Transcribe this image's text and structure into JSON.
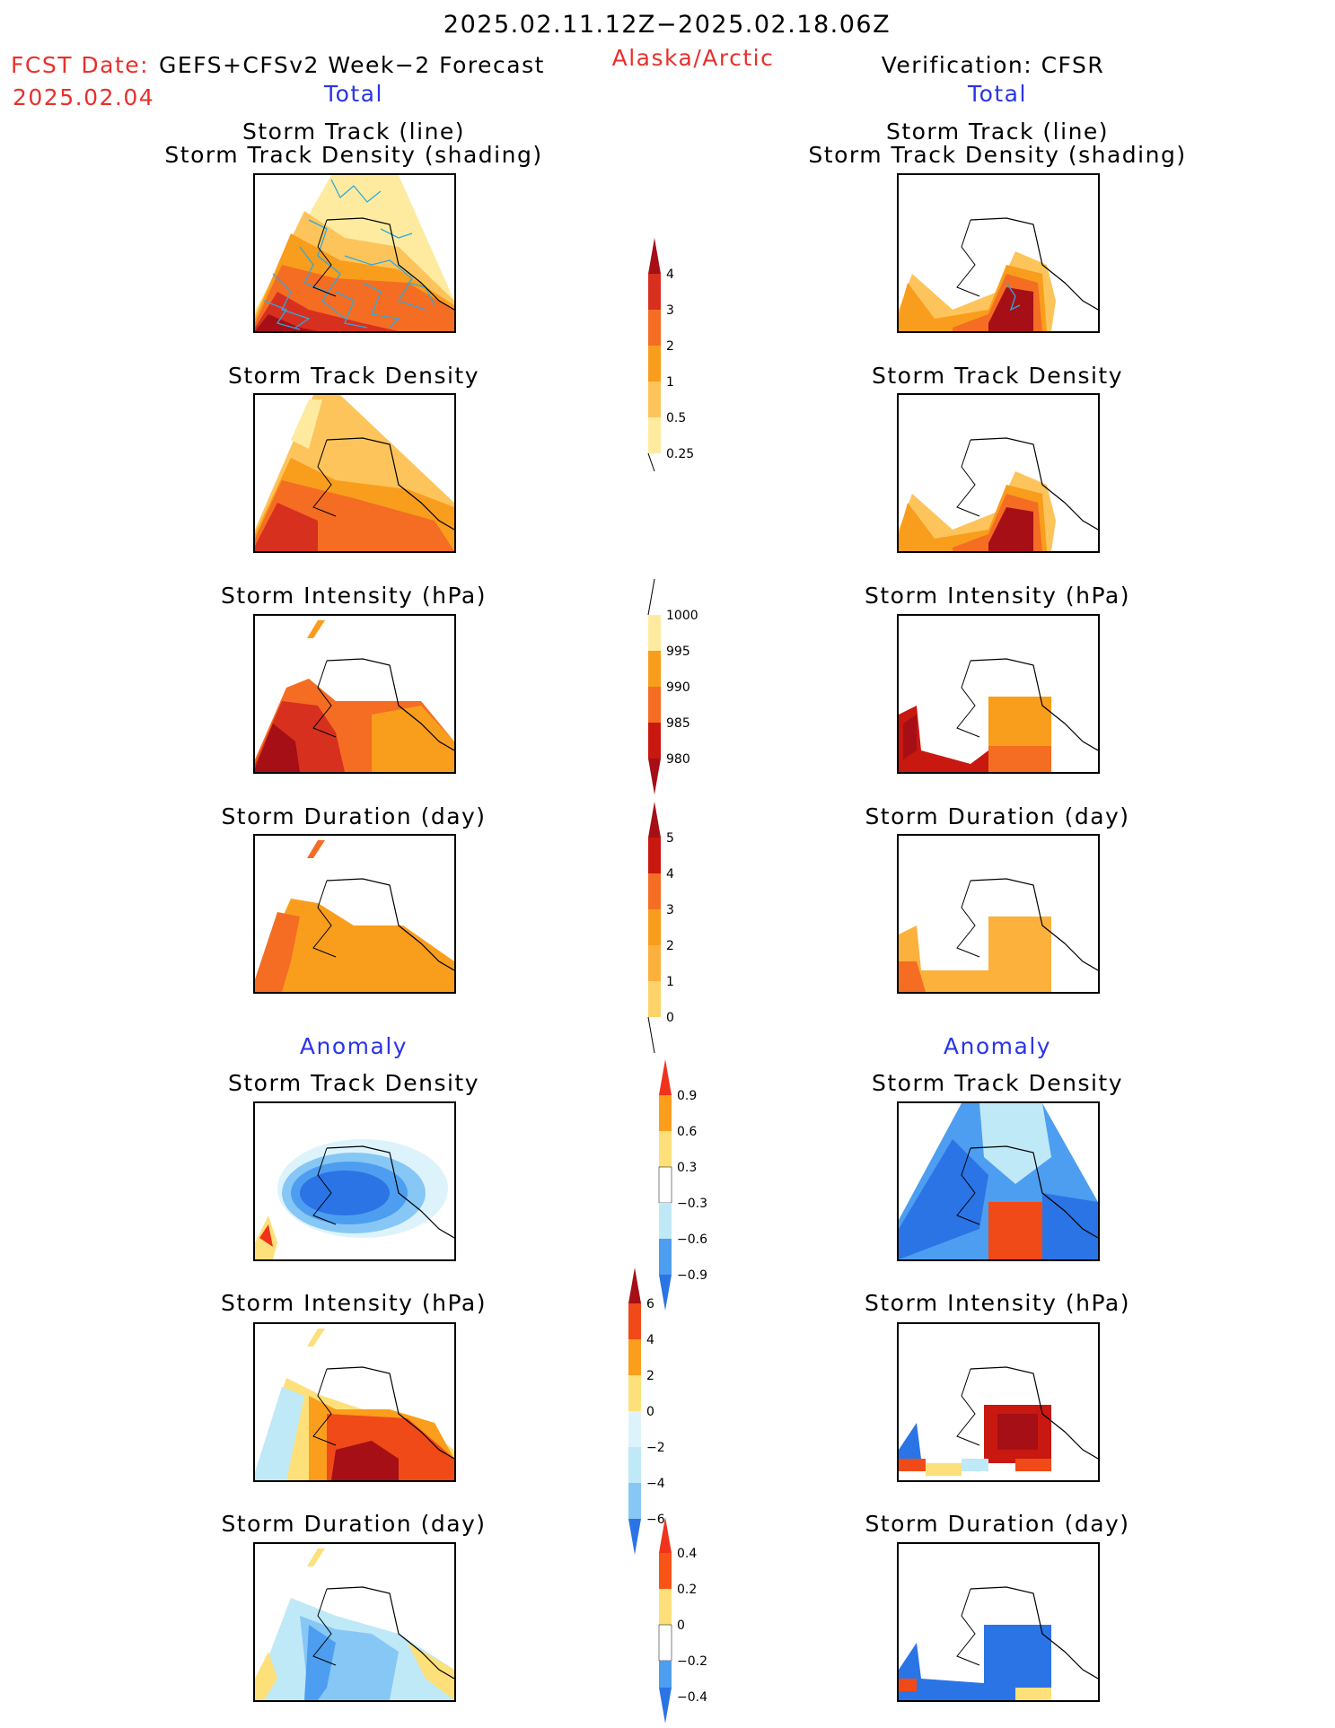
{
  "header": {
    "period": "2025.02.11.12Z−2025.02.18.06Z",
    "fcst_label": "FCST Date:",
    "fcst_product": "GEFS+CFSv2 Week−2 Forecast",
    "fcst_date": "2025.02.04",
    "region": "Alaska/Arctic",
    "verification": "Verification: CFSR"
  },
  "sections": {
    "total": "Total",
    "anomaly": "Anomaly"
  },
  "titles": {
    "track_line": "Storm Track (line)",
    "track_density_shading": "Storm Track Density (shading)",
    "track_density": "Storm Track Density",
    "intensity": "Storm Intensity (hPa)",
    "duration": "Storm Duration (day)"
  },
  "colorbars": {
    "density": {
      "ticks": [
        "4",
        "3",
        "2",
        "1",
        "0.5",
        "0.25"
      ],
      "colors": [
        "#a50f15",
        "#d7301f",
        "#f46d23",
        "#f99d1c",
        "#fdc45b",
        "#feeba0"
      ],
      "arrow_top": "#a50f15"
    },
    "intensity": {
      "ticks": [
        "1000",
        "995",
        "990",
        "985",
        "980"
      ],
      "colors": [
        "#feeba0",
        "#f99d1c",
        "#f46d23",
        "#c8180f"
      ],
      "arrow_bottom": "#a50f15"
    },
    "duration": {
      "ticks": [
        "5",
        "4",
        "3",
        "2",
        "1",
        "0"
      ],
      "colors": [
        "#c8180f",
        "#f46d23",
        "#f99d1c",
        "#fbb13c",
        "#fdd26a",
        "#feeba0"
      ],
      "arrow_top": "#a50f15"
    },
    "anom_density": {
      "ticks": [
        "0.9",
        "0.6",
        "0.3",
        "−0.3",
        "−0.6",
        "−0.9"
      ],
      "colors": [
        "#f95418",
        "#fb9e1c",
        "#fde07a",
        "#ffffff",
        "#bfe9f7",
        "#87c7f5",
        "#4d9ef0"
      ],
      "arrow_top": "#f0331a",
      "arrow_bottom": "#2a74e6"
    },
    "anom_intensity": {
      "ticks": [
        "6",
        "4",
        "2",
        "0",
        "−2",
        "−4",
        "−6"
      ],
      "colors": [
        "#f04a18",
        "#fb9e1c",
        "#fde07a",
        "#ddf3fb",
        "#bfe9f7",
        "#87c7f5",
        "#4d9ef0",
        "#2a74e6"
      ],
      "arrow_top": "#a50f15",
      "arrow_bottom": "#2a74e6"
    },
    "anom_duration": {
      "ticks": [
        "0.4",
        "0.2",
        "0",
        "−0.2",
        "−0.4"
      ],
      "colors": [
        "#f95418",
        "#fde07a",
        "#ffffff",
        "#bfe9f7",
        "#4d9ef0"
      ],
      "arrow_top": "#f0331a",
      "arrow_bottom": "#2a74e6"
    }
  }
}
